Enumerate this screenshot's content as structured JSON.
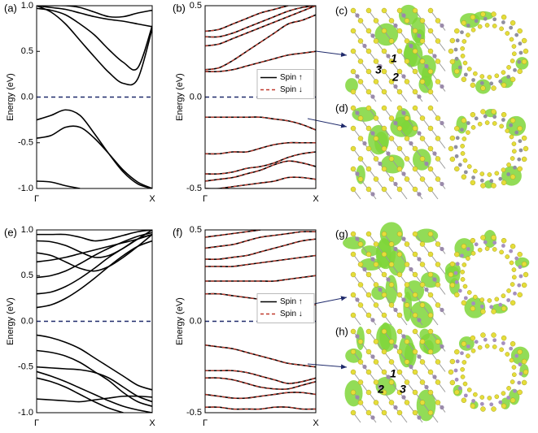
{
  "chart_data": [
    {
      "type": "line",
      "label": "(a)",
      "y_label": "Energy (eV)",
      "x": [
        0,
        0.125,
        0.25,
        0.375,
        0.5,
        0.625,
        0.75,
        0.875,
        1
      ],
      "xlim": [
        0,
        1
      ],
      "xticks": [
        {
          "value": 0,
          "label": "Γ"
        },
        {
          "value": 1,
          "label": "X"
        }
      ],
      "ylim": [
        -1,
        1
      ],
      "yticks": [
        {
          "value": 1,
          "label": "1.0"
        },
        0.5,
        {
          "value": 0,
          "label": "0.0"
        },
        -0.5,
        {
          "value": -1,
          "label": "-1.0"
        }
      ],
      "hline": {
        "value": 0,
        "color": "#1f2a6b"
      },
      "series": [
        {
          "color": "#000000",
          "dash": "solid",
          "bands": [
            [
              1.0,
              0.93,
              0.8,
              0.62,
              0.44,
              0.27,
              0.15,
              0.2,
              0.75
            ],
            [
              0.97,
              0.95,
              0.9,
              0.8,
              0.68,
              0.52,
              0.38,
              0.32,
              0.78
            ],
            [
              1.0,
              0.98,
              0.96,
              0.92,
              0.88,
              0.85,
              0.83,
              0.8,
              0.77
            ],
            [
              1.0,
              1.0,
              1.0,
              0.98,
              0.93,
              0.88,
              0.88,
              0.92,
              0.95
            ],
            [
              -0.25,
              -0.2,
              -0.14,
              -0.2,
              -0.4,
              -0.62,
              -0.82,
              -0.95,
              -1.0
            ],
            [
              -0.45,
              -0.42,
              -0.33,
              -0.33,
              -0.45,
              -0.62,
              -0.8,
              -0.93,
              -1.0
            ],
            [
              -0.92,
              -0.93,
              -0.97,
              -1.0,
              null,
              null,
              null,
              null,
              null
            ]
          ]
        }
      ]
    },
    {
      "type": "line",
      "label": "(b)",
      "y_label": "Energy (eV)",
      "legend": "center right",
      "x": [
        0,
        0.125,
        0.25,
        0.375,
        0.5,
        0.625,
        0.75,
        0.875,
        1
      ],
      "xlim": [
        0,
        1
      ],
      "xticks": [
        {
          "value": 0,
          "label": "Γ"
        },
        {
          "value": 1,
          "label": "X"
        }
      ],
      "ylim": [
        -0.5,
        0.5
      ],
      "yticks": [
        0.5,
        {
          "value": 0,
          "label": "0.0"
        },
        -0.5
      ],
      "hline": {
        "value": 0,
        "color": "#1f2a6b"
      },
      "series": [
        {
          "name": "Spin ↑",
          "color": "#000000",
          "dash": "solid",
          "bands": [
            [
              0.14,
              0.14,
              0.15,
              0.17,
              0.19,
              0.21,
              0.23,
              0.24,
              0.25
            ],
            [
              0.15,
              0.16,
              0.2,
              0.25,
              0.3,
              0.35,
              0.4,
              0.42,
              0.45
            ],
            [
              0.28,
              0.29,
              0.32,
              0.35,
              0.38,
              0.41,
              0.44,
              0.47,
              0.5
            ],
            [
              0.33,
              0.33,
              0.35,
              0.38,
              0.41,
              0.44,
              0.47,
              0.49,
              0.5
            ],
            [
              0.36,
              0.37,
              0.4,
              0.43,
              0.46,
              0.48,
              0.5,
              null,
              null
            ],
            [
              -0.11,
              -0.11,
              -0.11,
              -0.11,
              -0.11,
              -0.12,
              -0.13,
              -0.15,
              -0.18
            ],
            [
              -0.31,
              -0.31,
              -0.3,
              -0.3,
              -0.28,
              -0.26,
              -0.25,
              -0.25,
              -0.25
            ],
            [
              -0.42,
              -0.42,
              -0.41,
              -0.39,
              -0.38,
              -0.36,
              -0.33,
              -0.31,
              -0.3
            ],
            [
              -0.46,
              -0.45,
              -0.44,
              -0.42,
              -0.4,
              -0.37,
              -0.35,
              -0.36,
              -0.38
            ],
            [
              -0.5,
              -0.5,
              -0.49,
              -0.48,
              -0.47,
              -0.46,
              -0.44,
              -0.44,
              -0.45
            ]
          ]
        },
        {
          "name": "Spin ↓",
          "color": "#c0392b",
          "dash": "dashed",
          "bands": [
            [
              0.14,
              0.14,
              0.15,
              0.17,
              0.19,
              0.21,
              0.23,
              0.24,
              0.25
            ],
            [
              0.15,
              0.16,
              0.2,
              0.25,
              0.3,
              0.35,
              0.4,
              0.42,
              0.45
            ],
            [
              0.28,
              0.29,
              0.32,
              0.35,
              0.38,
              0.41,
              0.44,
              0.47,
              0.5
            ],
            [
              0.33,
              0.33,
              0.35,
              0.38,
              0.41,
              0.44,
              0.47,
              0.49,
              0.5
            ],
            [
              0.36,
              0.37,
              0.4,
              0.43,
              0.46,
              0.48,
              0.5,
              null,
              null
            ],
            [
              -0.11,
              -0.11,
              -0.11,
              -0.11,
              -0.11,
              -0.12,
              -0.13,
              -0.15,
              -0.18
            ],
            [
              -0.31,
              -0.31,
              -0.3,
              -0.3,
              -0.28,
              -0.26,
              -0.25,
              -0.25,
              -0.25
            ],
            [
              -0.42,
              -0.42,
              -0.41,
              -0.39,
              -0.38,
              -0.36,
              -0.33,
              -0.31,
              -0.3
            ],
            [
              -0.46,
              -0.45,
              -0.44,
              -0.42,
              -0.4,
              -0.37,
              -0.35,
              -0.36,
              -0.38
            ],
            [
              -0.5,
              -0.5,
              -0.49,
              -0.48,
              -0.47,
              -0.46,
              -0.44,
              -0.44,
              -0.45
            ]
          ]
        }
      ]
    },
    {
      "type": "line",
      "label": "(e)",
      "y_label": "Energy (eV)",
      "x": [
        0,
        0.125,
        0.25,
        0.375,
        0.5,
        0.625,
        0.75,
        0.875,
        1
      ],
      "xlim": [
        0,
        1
      ],
      "xticks": [
        {
          "value": 0,
          "label": "Γ"
        },
        {
          "value": 1,
          "label": "X"
        }
      ],
      "ylim": [
        -1,
        1
      ],
      "yticks": [
        {
          "value": 1,
          "label": "1.0"
        },
        0.5,
        {
          "value": 0,
          "label": "0.0"
        },
        -0.5,
        {
          "value": -1,
          "label": "-1.0"
        }
      ],
      "hline": {
        "value": 0,
        "color": "#1f2a6b"
      },
      "series": [
        {
          "color": "#000000",
          "dash": "solid",
          "bands": [
            [
              0.15,
              0.18,
              0.25,
              0.35,
              0.47,
              0.6,
              0.72,
              0.82,
              0.88
            ],
            [
              0.3,
              0.32,
              0.38,
              0.47,
              0.58,
              0.7,
              0.8,
              0.9,
              0.95
            ],
            [
              0.48,
              0.5,
              0.55,
              0.63,
              0.72,
              0.8,
              0.87,
              0.93,
              0.97
            ],
            [
              0.65,
              0.67,
              0.7,
              0.74,
              0.78,
              0.82,
              0.86,
              0.9,
              0.95
            ],
            [
              0.75,
              0.72,
              0.65,
              0.58,
              0.55,
              0.6,
              0.7,
              0.82,
              0.95
            ],
            [
              0.88,
              0.87,
              0.83,
              0.76,
              0.7,
              0.72,
              0.8,
              0.9,
              1.0
            ],
            [
              0.95,
              0.95,
              0.95,
              0.92,
              0.88,
              0.9,
              0.94,
              0.98,
              1.0
            ],
            [
              -0.15,
              -0.18,
              -0.23,
              -0.3,
              -0.4,
              -0.5,
              -0.6,
              -0.7,
              -0.75
            ],
            [
              -0.32,
              -0.34,
              -0.38,
              -0.45,
              -0.55,
              -0.65,
              -0.78,
              -0.88,
              -0.93
            ],
            [
              -0.5,
              -0.51,
              -0.52,
              -0.53,
              -0.56,
              -0.62,
              -0.72,
              -0.82,
              -0.88
            ],
            [
              -0.55,
              -0.6,
              -0.66,
              -0.73,
              -0.8,
              -0.87,
              -0.93,
              -0.97,
              -1.0
            ],
            [
              -0.62,
              -0.66,
              -0.72,
              -0.8,
              -0.88,
              -0.95,
              -1.0,
              null,
              null
            ],
            [
              -0.85,
              -0.86,
              -0.87,
              -0.88,
              -0.86,
              -0.84,
              -0.82,
              -0.82,
              -0.83
            ]
          ]
        }
      ]
    },
    {
      "type": "line",
      "label": "(f)",
      "y_label": "Energy (eV)",
      "legend": "center right",
      "x": [
        0,
        0.125,
        0.25,
        0.375,
        0.5,
        0.625,
        0.75,
        0.875,
        1
      ],
      "xlim": [
        0,
        1
      ],
      "xticks": [
        {
          "value": 0,
          "label": "Γ"
        },
        {
          "value": 1,
          "label": "X"
        }
      ],
      "ylim": [
        -0.5,
        0.5
      ],
      "yticks": [
        0.5,
        {
          "value": 0,
          "label": "0.0"
        },
        -0.5
      ],
      "hline": {
        "value": 0,
        "color": "#1f2a6b"
      },
      "series": [
        {
          "name": "Spin ↑",
          "color": "#000000",
          "dash": "solid",
          "bands": [
            [
              0.15,
              0.15,
              0.14,
              0.13,
              0.12,
              0.11,
              0.1,
              0.09,
              0.09
            ],
            [
              0.22,
              0.22,
              0.22,
              0.22,
              0.22,
              0.22,
              0.23,
              0.24,
              0.25
            ],
            [
              0.3,
              0.3,
              0.3,
              0.31,
              0.32,
              0.33,
              0.34,
              0.35,
              0.36
            ],
            [
              0.34,
              0.34,
              0.35,
              0.36,
              0.38,
              0.4,
              0.42,
              0.44,
              0.45
            ],
            [
              0.4,
              0.41,
              0.42,
              0.44,
              0.46,
              0.47,
              0.48,
              0.49,
              0.49
            ],
            [
              0.46,
              0.47,
              0.48,
              0.49,
              0.5,
              null,
              null,
              null,
              null
            ],
            [
              -0.13,
              -0.14,
              -0.15,
              -0.17,
              -0.19,
              -0.21,
              -0.23,
              -0.24,
              -0.25
            ],
            [
              -0.27,
              -0.27,
              -0.27,
              -0.28,
              -0.3,
              -0.32,
              -0.34,
              -0.33,
              -0.31
            ],
            [
              -0.31,
              -0.31,
              -0.32,
              -0.34,
              -0.36,
              -0.37,
              -0.37,
              -0.35,
              -0.33
            ],
            [
              -0.4,
              -0.41,
              -0.42,
              -0.42,
              -0.41,
              -0.4,
              -0.39,
              -0.39,
              -0.4
            ],
            [
              -0.47,
              -0.47,
              -0.48,
              -0.48,
              -0.48,
              -0.47,
              -0.47,
              -0.48,
              -0.48
            ]
          ]
        },
        {
          "name": "Spin ↓",
          "color": "#c0392b",
          "dash": "dashed",
          "bands": [
            [
              0.15,
              0.15,
              0.14,
              0.13,
              0.12,
              0.11,
              0.1,
              0.09,
              0.09
            ],
            [
              0.22,
              0.22,
              0.22,
              0.22,
              0.22,
              0.22,
              0.23,
              0.24,
              0.25
            ],
            [
              0.3,
              0.3,
              0.3,
              0.31,
              0.32,
              0.33,
              0.34,
              0.35,
              0.36
            ],
            [
              0.34,
              0.34,
              0.35,
              0.36,
              0.38,
              0.4,
              0.42,
              0.44,
              0.45
            ],
            [
              0.4,
              0.41,
              0.42,
              0.44,
              0.46,
              0.47,
              0.48,
              0.49,
              0.49
            ],
            [
              0.46,
              0.47,
              0.48,
              0.49,
              0.5,
              null,
              null,
              null,
              null
            ],
            [
              -0.13,
              -0.14,
              -0.15,
              -0.17,
              -0.19,
              -0.21,
              -0.23,
              -0.24,
              -0.25
            ],
            [
              -0.27,
              -0.27,
              -0.27,
              -0.28,
              -0.3,
              -0.32,
              -0.34,
              -0.33,
              -0.31
            ],
            [
              -0.31,
              -0.31,
              -0.32,
              -0.34,
              -0.36,
              -0.37,
              -0.37,
              -0.35,
              -0.33
            ],
            [
              -0.4,
              -0.41,
              -0.42,
              -0.42,
              -0.41,
              -0.4,
              -0.39,
              -0.39,
              -0.4
            ],
            [
              -0.47,
              -0.47,
              -0.48,
              -0.48,
              -0.48,
              -0.47,
              -0.47,
              -0.48,
              -0.48
            ]
          ]
        }
      ]
    }
  ],
  "images": [
    {
      "label": "(c)",
      "annotations": [
        "3",
        "1",
        "2"
      ]
    },
    {
      "label": "(d)",
      "annotations": []
    },
    {
      "label": "(g)",
      "annotations": []
    },
    {
      "label": "(h)",
      "annotations": [
        "1",
        "2",
        "3"
      ]
    }
  ]
}
